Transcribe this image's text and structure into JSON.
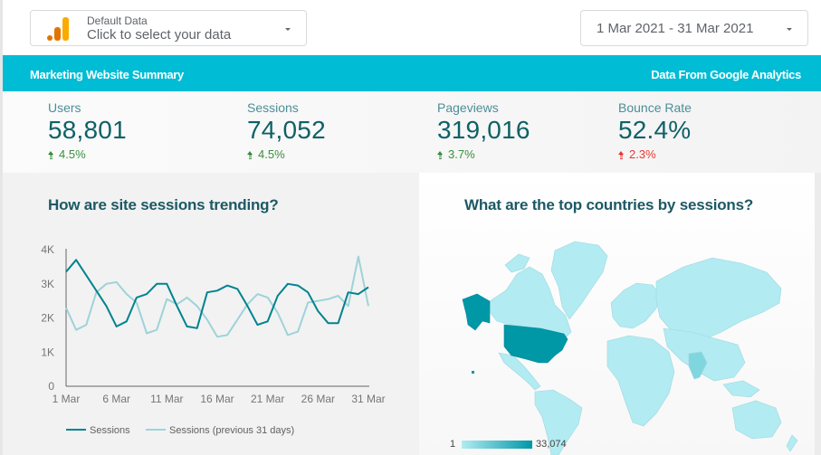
{
  "data_selector": {
    "label": "Default Data",
    "value": "Click to select your data",
    "icon": "google-analytics-icon"
  },
  "date_picker": {
    "value": "1 Mar 2021 - 31 Mar 2021"
  },
  "banner": {
    "title": "Marketing Website Summary",
    "source": "Data From Google Analytics",
    "color": "#00bcd4"
  },
  "kpis": [
    {
      "label": "Users",
      "value": "58,801",
      "delta": "4.5%",
      "direction": "up",
      "sentiment": "positive"
    },
    {
      "label": "Sessions",
      "value": "74,052",
      "delta": "4.5%",
      "direction": "up",
      "sentiment": "positive"
    },
    {
      "label": "Pageviews",
      "value": "319,016",
      "delta": "3.7%",
      "direction": "up",
      "sentiment": "positive"
    },
    {
      "label": "Bounce Rate",
      "value": "52.4%",
      "delta": "2.3%",
      "direction": "up",
      "sentiment": "negative"
    }
  ],
  "trend_panel": {
    "title": "How are site sessions trending?"
  },
  "map_panel": {
    "title": "What are the top countries by sessions?",
    "legend_min": "1",
    "legend_max": "33,074",
    "color_low": "#b2ebf2",
    "color_high": "#0097a7"
  },
  "chart_data": {
    "type": "line",
    "title": "How are site sessions trending?",
    "xlabel": "",
    "ylabel": "",
    "x": [
      1,
      2,
      3,
      4,
      5,
      6,
      7,
      8,
      9,
      10,
      11,
      12,
      13,
      14,
      15,
      16,
      17,
      18,
      19,
      20,
      21,
      22,
      23,
      24,
      25,
      26,
      27,
      28,
      29,
      30,
      31
    ],
    "x_tick_labels": [
      "1 Mar",
      "6 Mar",
      "11 Mar",
      "16 Mar",
      "21 Mar",
      "26 Mar",
      "31 Mar"
    ],
    "y_tick_labels": [
      "0",
      "1K",
      "2K",
      "3K",
      "4K"
    ],
    "ylim": [
      0,
      4000
    ],
    "grid": false,
    "legend_position": "bottom",
    "series": [
      {
        "name": "Sessions",
        "color": "#00838f",
        "values": [
          3350,
          3700,
          3250,
          2800,
          2350,
          1750,
          1900,
          2600,
          2700,
          3000,
          3000,
          2350,
          1750,
          1700,
          2750,
          2800,
          2950,
          2850,
          2350,
          1800,
          1900,
          2650,
          3000,
          2950,
          2750,
          2200,
          1850,
          1850,
          2750,
          2700,
          2900
        ]
      },
      {
        "name": "Sessions (previous 31 days)",
        "color": "#9ed3d8",
        "values": [
          2300,
          1650,
          1800,
          2750,
          3000,
          3050,
          2700,
          2450,
          1550,
          1650,
          2550,
          2400,
          2600,
          2350,
          1950,
          1450,
          1500,
          1950,
          2400,
          2700,
          2600,
          2150,
          1500,
          1600,
          2450,
          2500,
          2550,
          2650,
          2350,
          3800,
          2350
        ]
      }
    ]
  }
}
